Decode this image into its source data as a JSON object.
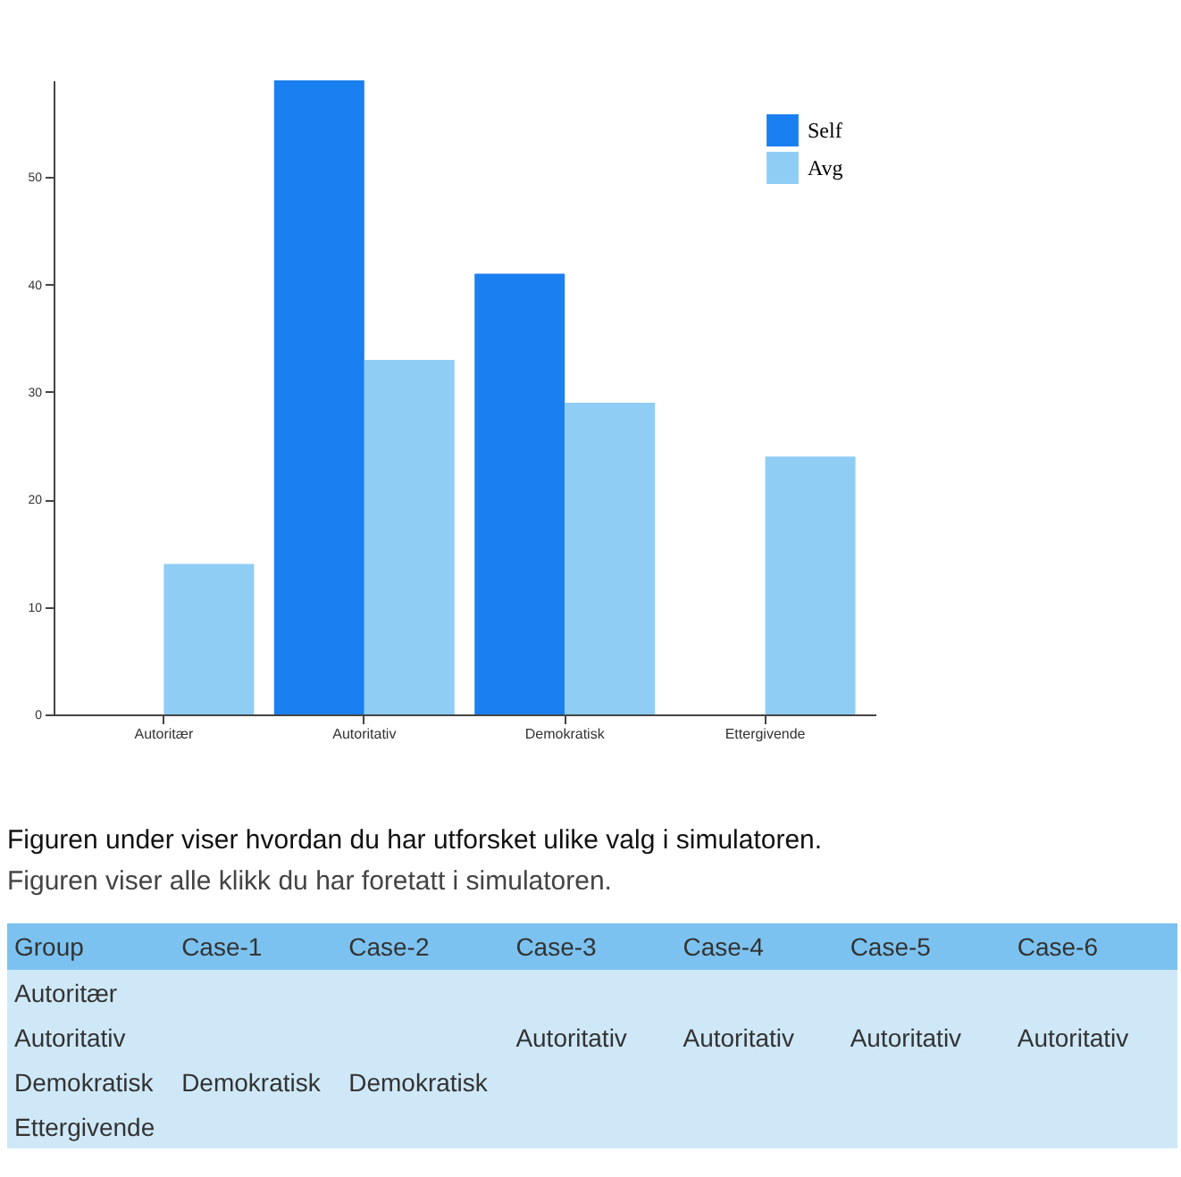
{
  "chart_data": [
    {
      "type": "bar",
      "categories": [
        "Autoritær",
        "Autoritativ",
        "Demokratisk",
        "Ettergivende"
      ],
      "series": [
        {
          "name": "Self",
          "color": "#1a7ff0",
          "values": [
            null,
            59,
            41,
            null
          ]
        },
        {
          "name": "Avg",
          "color": "#8fcdf5",
          "values": [
            14,
            33,
            29,
            24
          ]
        }
      ],
      "ylim": [
        0,
        59
      ],
      "yticks": [
        0,
        10,
        20,
        30,
        40,
        50
      ],
      "grid": false,
      "legend": "top right",
      "annotations": [
        "Figuren under viser hvordan du har utforsket ulike valg i simulatoren.",
        "Figuren viser alle klikk du har foretatt i simulatoren."
      ]
    },
    {
      "type": "other",
      "categories": [
        "Group",
        "Case-1",
        "Case-2",
        "Case-3",
        "Case-4",
        "Case-5",
        "Case-6"
      ],
      "cells": [
        [
          "Autoritær",
          null,
          null,
          null,
          null,
          null,
          null
        ],
        [
          "Autoritativ",
          null,
          null,
          "Autoritativ",
          "Autoritativ",
          "Autoritativ",
          "Autoritativ"
        ],
        [
          "Demokratisk",
          "Demokratisk",
          "Demokratisk",
          null,
          null,
          null,
          null
        ],
        [
          "Ettergivende",
          null,
          null,
          null,
          null,
          null,
          null
        ]
      ]
    }
  ]
}
